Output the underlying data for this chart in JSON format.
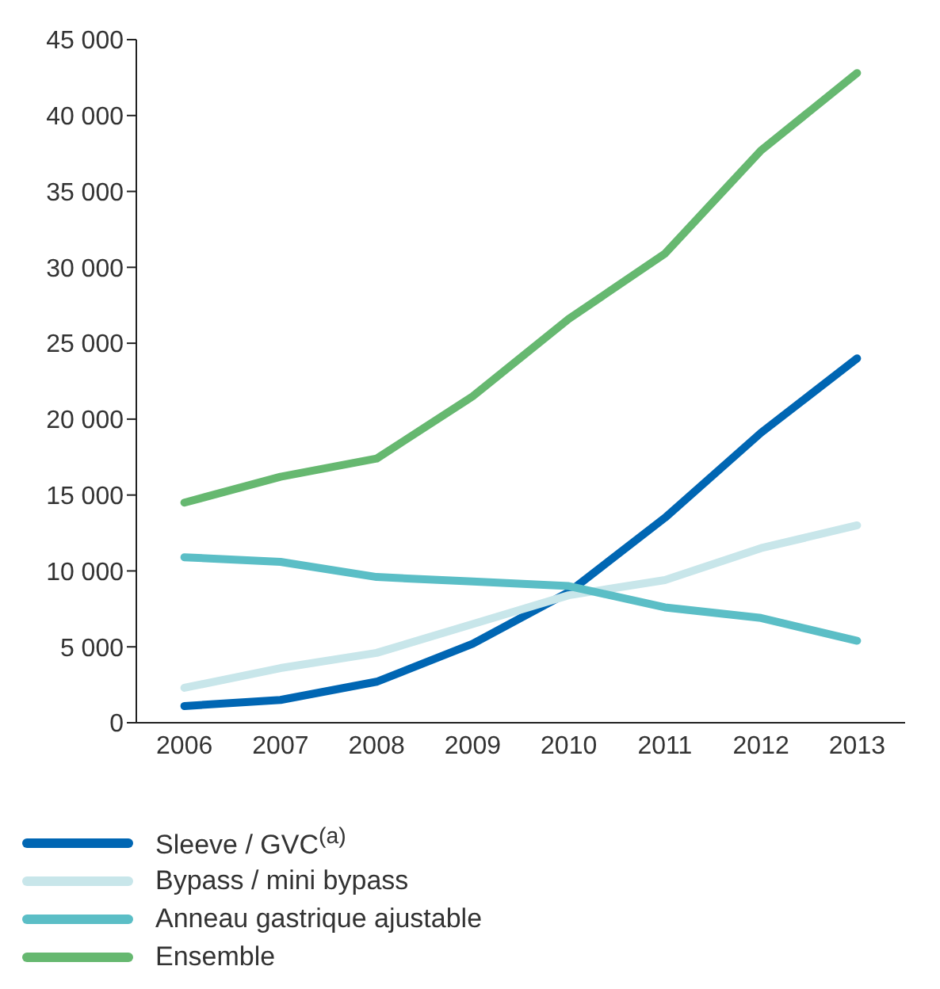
{
  "chart_data": {
    "type": "line",
    "categories": [
      "2006",
      "2007",
      "2008",
      "2009",
      "2010",
      "2011",
      "2012",
      "2013"
    ],
    "series": [
      {
        "name": "Sleeve / GVC$^{(a)}$",
        "color": "#0066b3",
        "values": [
          1100,
          1500,
          2700,
          5200,
          8600,
          13500,
          19100,
          24000
        ]
      },
      {
        "name": "Bypass / mini bypass",
        "color": "#c8e6ea",
        "values": [
          2300,
          3600,
          4600,
          6500,
          8400,
          9400,
          11500,
          13000
        ]
      },
      {
        "name": "Anneau gastrique ajustable",
        "color": "#5bbec6",
        "values": [
          10900,
          10600,
          9600,
          9300,
          9000,
          7600,
          6900,
          5400
        ]
      },
      {
        "name": "Ensemble",
        "color": "#66b870",
        "values": [
          14500,
          16200,
          17400,
          21500,
          26600,
          30900,
          37700,
          42800
        ]
      }
    ],
    "ylim": [
      0,
      45000
    ],
    "yticks": [
      {
        "value": 0,
        "label": "0"
      },
      {
        "value": 5000,
        "label": "5 000"
      },
      {
        "value": 10000,
        "label": "10 000"
      },
      {
        "value": 15000,
        "label": "15 000"
      },
      {
        "value": 20000,
        "label": "20 000"
      },
      {
        "value": 25000,
        "label": "25 000"
      },
      {
        "value": 30000,
        "label": "30 000"
      },
      {
        "value": 35000,
        "label": "35 000"
      },
      {
        "value": 40000,
        "label": "40 000"
      },
      {
        "value": 45000,
        "label": "45 000"
      }
    ],
    "grid": false,
    "legend": "bottom",
    "marker": "none",
    "line_style": "solid"
  }
}
